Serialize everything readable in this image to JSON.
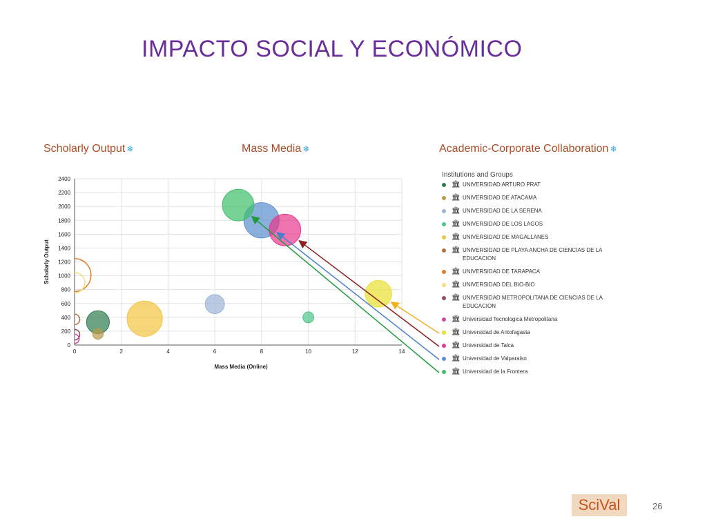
{
  "slide": {
    "title": "IMPACTO SOCIAL Y ECONÓMICO",
    "page_number": "26",
    "logo": "SciVal"
  },
  "metrics": {
    "scholarly_output": {
      "label": "Scholarly Output",
      "icon": "snowflake-icon"
    },
    "mass_media": {
      "label": "Mass Media",
      "icon": "snowflake-icon"
    },
    "academic_corporate": {
      "label": "Academic-Corporate Collaboration",
      "icon": "snowflake-icon"
    }
  },
  "legend": {
    "header": "Institutions and Groups",
    "items": [
      {
        "name": "UNIVERSIDAD ARTURO PRAT",
        "color": "#2e7d4f"
      },
      {
        "name": "UNIVERSIDAD DE ATACAMA",
        "color": "#b89a4a"
      },
      {
        "name": "UNIVERSIDAD DE LA SERENA",
        "color": "#9bb3d6"
      },
      {
        "name": "UNIVERSIDAD DE LOS LAGOS",
        "color": "#4ec48a"
      },
      {
        "name": "UNIVERSIDAD DE MAGALLANES",
        "color": "#f4c542"
      },
      {
        "name": "UNIVERSIDAD DE PLAYA ANCHA DE CIENCIAS DE LA EDUCACION",
        "color": "#b5703a"
      },
      {
        "name": "UNIVERSIDAD DE TARAPACA",
        "color": "#e07b2a"
      },
      {
        "name": "UNIVERSIDAD DEL BIO-BIO",
        "color": "#f5dd80"
      },
      {
        "name": "UNIVERSIDAD METROPOLITANA DE CIENCIAS DE LA EDUCACION",
        "color": "#8a4a5a"
      },
      {
        "name": "Universidad Tecnologica Metropolitana",
        "color": "#d04aa0"
      },
      {
        "name": "Universidad de Antofagasta",
        "color": "#e8e030"
      },
      {
        "name": "Universidad de Talca",
        "color": "#e8388c"
      },
      {
        "name": "Universidad de Valparaiso",
        "color": "#5b8fd0"
      },
      {
        "name": "Universidad de la Frontera",
        "color": "#3fbf6a"
      }
    ]
  },
  "chart_data": {
    "type": "scatter",
    "xlabel": "Mass Media (Online)",
    "ylabel": "Scholarly Output",
    "xlim": [
      0,
      14
    ],
    "ylim": [
      0,
      2400
    ],
    "xticks": [
      0,
      2,
      4,
      6,
      8,
      10,
      12,
      14
    ],
    "yticks": [
      0,
      200,
      400,
      600,
      800,
      1000,
      1200,
      1400,
      1600,
      1800,
      2000,
      2200,
      2400
    ],
    "grid": true,
    "bubble_size_metric": "Academic-Corporate Collaboration",
    "points": [
      {
        "institution": "UNIVERSIDAD ARTURO PRAT",
        "x": 1,
        "y": 330,
        "size": 0.7,
        "color": "#2e7d4f",
        "style": "filled"
      },
      {
        "institution": "UNIVERSIDAD DE ATACAMA",
        "x": 1,
        "y": 160,
        "size": 0.2,
        "color": "#b89a4a",
        "style": "filled"
      },
      {
        "institution": "UNIVERSIDAD DE LA SERENA",
        "x": 6,
        "y": 590,
        "size": 0.55,
        "color": "#9bb3d6",
        "style": "filled"
      },
      {
        "institution": "UNIVERSIDAD DE LOS LAGOS",
        "x": 10,
        "y": 400,
        "size": 0.22,
        "color": "#4ec48a",
        "style": "filled"
      },
      {
        "institution": "UNIVERSIDAD DE MAGALLANES",
        "x": 3,
        "y": 380,
        "size": 1.2,
        "color": "#f4c542",
        "style": "filled"
      },
      {
        "institution": "UNIVERSIDAD DE PLAYA ANCHA DE CIENCIAS DE LA EDUCACION",
        "x": 0,
        "y": 370,
        "size": 0.2,
        "color": "#b5703a",
        "style": "outline"
      },
      {
        "institution": "UNIVERSIDAD DE TARAPACA",
        "x": 0,
        "y": 1010,
        "size": 1.1,
        "color": "#e07b2a",
        "style": "outline"
      },
      {
        "institution": "UNIVERSIDAD DEL BIO-BIO",
        "x": 0,
        "y": 900,
        "size": 0.6,
        "color": "#f5dd80",
        "style": "outline"
      },
      {
        "institution": "UNIVERSIDAD METROPOLITANA DE CIENCIAS DE LA EDUCACION",
        "x": 0,
        "y": 150,
        "size": 0.2,
        "color": "#8a4a5a",
        "style": "outline"
      },
      {
        "institution": "Universidad Tecnologica Metropolitana",
        "x": 0,
        "y": 90,
        "size": 0.15,
        "color": "#d04aa0",
        "style": "outline"
      },
      {
        "institution": "Universidad de Antofagasta",
        "x": 13,
        "y": 740,
        "size": 0.85,
        "color": "#e8e030",
        "style": "filled"
      },
      {
        "institution": "Universidad de Talca",
        "x": 9,
        "y": 1660,
        "size": 1.05,
        "color": "#e8388c",
        "style": "filled"
      },
      {
        "institution": "Universidad de Valparaiso",
        "x": 8,
        "y": 1800,
        "size": 1.2,
        "color": "#5b8fd0",
        "style": "filled"
      },
      {
        "institution": "Universidad de la Frontera",
        "x": 7,
        "y": 2020,
        "size": 1.05,
        "color": "#3fbf6a",
        "style": "filled"
      }
    ]
  },
  "annotations": {
    "arrows": [
      {
        "to_institution": "Universidad de Antofagasta",
        "color": "#f0b020"
      },
      {
        "to_institution": "Universidad de Talca",
        "color": "#8b2020"
      },
      {
        "to_institution": "Universidad de Valparaiso",
        "color": "#4a7fcc"
      },
      {
        "to_institution": "Universidad de la Frontera",
        "color": "#1f9a3a"
      }
    ]
  }
}
